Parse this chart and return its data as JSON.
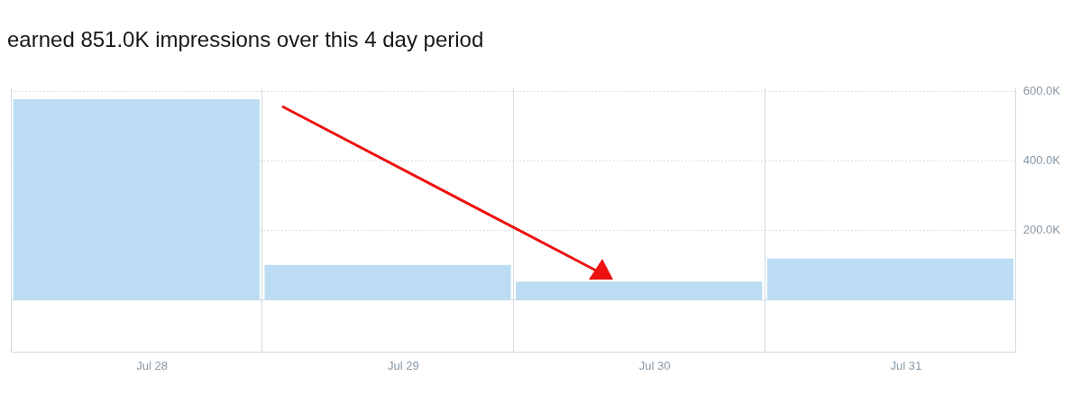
{
  "chart_data": {
    "type": "bar",
    "title": "earned 851.0K impressions over this 4 day period",
    "categories": [
      "Jul 28",
      "Jul 29",
      "Jul 30",
      "Jul 31"
    ],
    "values": [
      578000,
      101000,
      53000,
      119000
    ],
    "color": "#bbdcf2",
    "ylim": [
      -150000,
      610000
    ],
    "ref_lines": [
      {
        "axis": "y",
        "value": 0,
        "color": "#cfdbe5"
      }
    ],
    "yticks": [
      {
        "value": 200000,
        "label": "200.0K"
      },
      {
        "value": 400000,
        "label": "400.0K"
      },
      {
        "value": 600000,
        "label": "600.0K"
      }
    ],
    "grid": true,
    "legend": false
  }
}
